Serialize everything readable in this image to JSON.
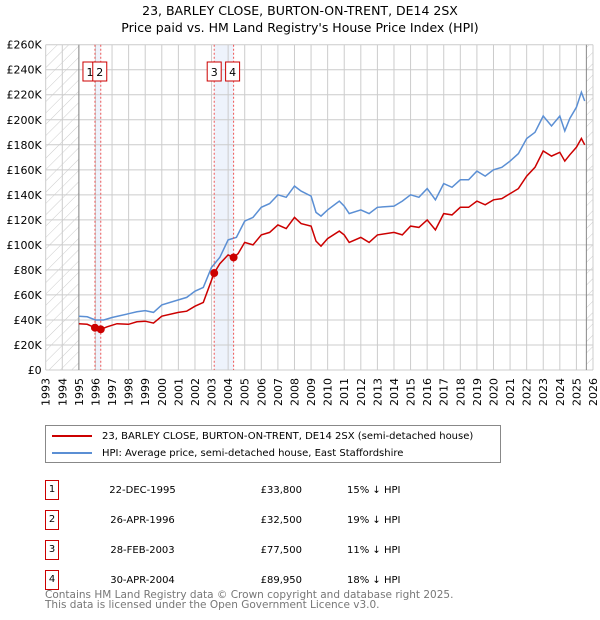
{
  "title": {
    "line1": "23, BARLEY CLOSE, BURTON-ON-TRENT, DE14 2SX",
    "line2": "Price paid vs. HM Land Registry's House Price Index (HPI)"
  },
  "chart_data": {
    "type": "line",
    "title": "23, BARLEY CLOSE, BURTON-ON-TRENT, DE14 2SX — Price paid vs. HM Land Registry's House Price Index (HPI)",
    "xlim": [
      1993,
      2026
    ],
    "ylim": [
      0,
      260000
    ],
    "yticks": [
      "£0",
      "£20K",
      "£40K",
      "£60K",
      "£80K",
      "£100K",
      "£120K",
      "£140K",
      "£160K",
      "£180K",
      "£200K",
      "£220K",
      "£240K",
      "£260K"
    ],
    "xticks": [
      "1993",
      "1994",
      "1995",
      "1996",
      "1997",
      "1998",
      "1999",
      "2000",
      "2001",
      "2002",
      "2003",
      "2004",
      "2005",
      "2006",
      "2007",
      "2008",
      "2009",
      "2010",
      "2011",
      "2012",
      "2013",
      "2014",
      "2015",
      "2016",
      "2017",
      "2018",
      "2019",
      "2020",
      "2021",
      "2022",
      "2023",
      "2024",
      "2025",
      "2026"
    ],
    "grid": true,
    "series": [
      {
        "name": "23, BARLEY CLOSE, BURTON-ON-TRENT, DE14 2SX (semi-detached house)",
        "color": "#cc0000",
        "x": [
          1995.0,
          1995.5,
          1995.97,
          1996.32,
          1996.7,
          1997.3,
          1998,
          1998.5,
          1999,
          1999.5,
          2000,
          2001,
          2001.5,
          2002,
          2002.5,
          2003.16,
          2003.5,
          2004,
          2004.33,
          2004.6,
          2005,
          2005.5,
          2006,
          2006.5,
          2007,
          2007.5,
          2008,
          2008.4,
          2009,
          2009.3,
          2009.6,
          2010,
          2010.7,
          2011,
          2011.3,
          2012,
          2012.5,
          2013,
          2014,
          2014.5,
          2015,
          2015.5,
          2016,
          2016.5,
          2017,
          2017.5,
          2018,
          2018.5,
          2019,
          2019.5,
          2020,
          2020.5,
          2021,
          2021.5,
          2022,
          2022.5,
          2023,
          2023.5,
          2024,
          2024.3,
          2024.6,
          2025,
          2025.3,
          2025.5
        ],
        "y": [
          37000,
          36500,
          33800,
          32500,
          34500,
          37000,
          36500,
          38500,
          39000,
          37500,
          43000,
          46000,
          47000,
          51000,
          54000,
          77500,
          85000,
          92000,
          89950,
          93000,
          102000,
          100000,
          108000,
          110000,
          116000,
          113000,
          122000,
          117000,
          115000,
          103000,
          99000,
          105000,
          111000,
          108000,
          102000,
          106000,
          102000,
          108000,
          110000,
          108000,
          115000,
          114000,
          120000,
          112000,
          125000,
          124000,
          130000,
          130000,
          135000,
          132000,
          136000,
          137000,
          141000,
          145000,
          155000,
          162000,
          175000,
          171000,
          174000,
          167000,
          172000,
          178000,
          185000,
          180000
        ]
      },
      {
        "name": "HPI: Average price, semi-detached house, East Staffordshire",
        "color": "#5b8fd4",
        "x": [
          1995.0,
          1995.5,
          1996,
          1996.5,
          1997,
          1998,
          1998.5,
          1999,
          1999.5,
          2000,
          2001,
          2001.5,
          2002,
          2002.5,
          2003,
          2003.5,
          2004,
          2004.5,
          2005,
          2005.5,
          2006,
          2006.5,
          2007,
          2007.5,
          2008,
          2008.4,
          2009,
          2009.3,
          2009.6,
          2010,
          2010.7,
          2011,
          2011.3,
          2012,
          2012.5,
          2013,
          2014,
          2014.5,
          2015,
          2015.5,
          2016,
          2016.5,
          2017,
          2017.5,
          2018,
          2018.5,
          2019,
          2019.5,
          2020,
          2020.5,
          2021,
          2021.5,
          2022,
          2022.5,
          2023,
          2023.5,
          2024,
          2024.3,
          2024.6,
          2025,
          2025.3,
          2025.5
        ],
        "y": [
          43000,
          42500,
          40000,
          40000,
          42000,
          45000,
          46500,
          47500,
          46000,
          52000,
          56000,
          58000,
          63000,
          66000,
          82000,
          90000,
          104000,
          106000,
          119000,
          122000,
          130000,
          133000,
          140000,
          138000,
          147000,
          143000,
          139000,
          126000,
          123000,
          128000,
          135000,
          131000,
          125000,
          128000,
          125000,
          130000,
          131000,
          135000,
          140000,
          138000,
          145000,
          136000,
          149000,
          146000,
          152000,
          152000,
          159000,
          155000,
          160000,
          162000,
          167000,
          173000,
          185000,
          190000,
          203000,
          195000,
          203000,
          191000,
          201000,
          210000,
          222000,
          215000
        ]
      }
    ],
    "sales": [
      {
        "label": "1",
        "date": "22-DEC-1995",
        "x": 1995.97,
        "price": 33800,
        "price_text": "£33,800",
        "hpi_text": "15% ↓ HPI"
      },
      {
        "label": "2",
        "date": "26-APR-1996",
        "x": 1996.32,
        "price": 32500,
        "price_text": "£32,500",
        "hpi_text": "19% ↓ HPI"
      },
      {
        "label": "3",
        "date": "28-FEB-2003",
        "x": 2003.16,
        "price": 77500,
        "price_text": "£77,500",
        "hpi_text": "11% ↓ HPI"
      },
      {
        "label": "4",
        "date": "30-APR-2004",
        "x": 2004.33,
        "price": 89950,
        "price_text": "£89,950",
        "hpi_text": "18% ↓ HPI"
      }
    ]
  },
  "legend": {
    "red": "23, BARLEY CLOSE, BURTON-ON-TRENT, DE14 2SX (semi-detached house)",
    "blue": "HPI: Average price, semi-detached house, East Staffordshire"
  },
  "footer": {
    "line1": "Contains HM Land Registry data © Crown copyright and database right 2025.",
    "line2": "This data is licensed under the Open Government Licence v3.0."
  }
}
